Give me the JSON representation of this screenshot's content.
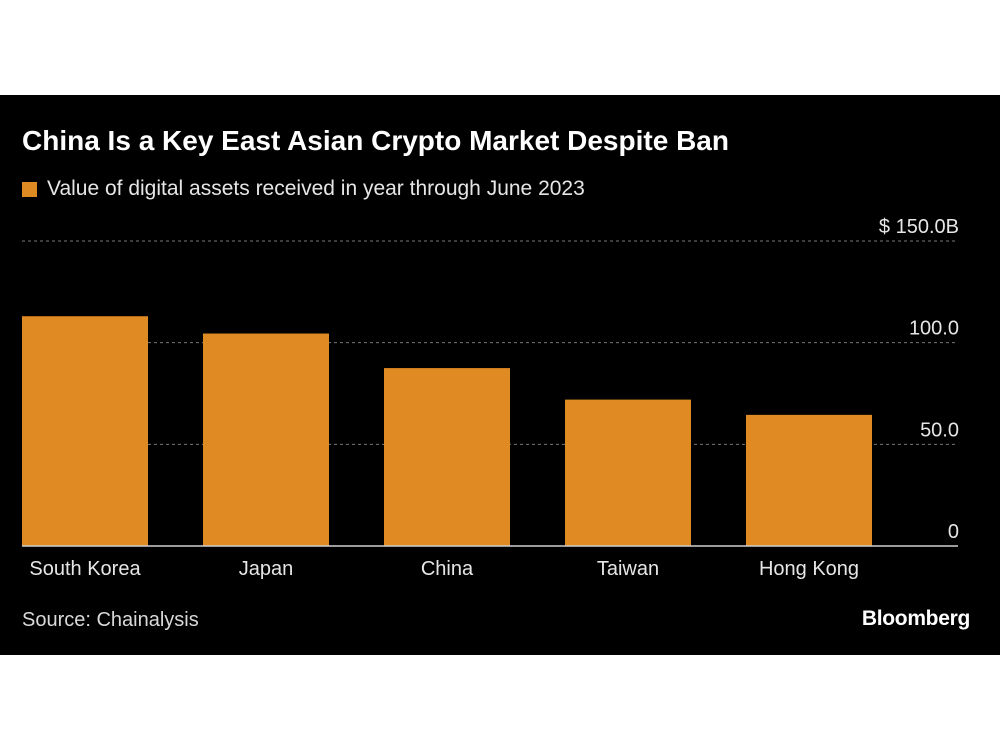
{
  "chart": {
    "title": "China Is a Key East Asian Crypto Market Despite Ban",
    "legend_label": "Value of digital assets received in year through June 2023",
    "source": "Source: Chainalysis",
    "brand": "Bloomberg",
    "colors": {
      "bar": "#e08a23",
      "background": "#000000",
      "text": "#e6e6e6",
      "grid": "#777777"
    }
  },
  "chart_data": {
    "type": "bar",
    "title": "China Is a Key East Asian Crypto Market Despite Ban",
    "categories": [
      "South Korea",
      "Japan",
      "China",
      "Taiwan",
      "Hong Kong"
    ],
    "series": [
      {
        "name": "Value of digital assets received in year through June 2023",
        "values": [
          113,
          104.5,
          87.5,
          72,
          64.5
        ]
      }
    ],
    "ylim": [
      0,
      150
    ],
    "yticks": [
      0,
      50,
      100,
      150
    ],
    "ytick_labels": [
      "0",
      "50.0",
      "100.0",
      "$ 150.0B"
    ],
    "grid": true,
    "legend_position": "top-left",
    "xlabel": "",
    "ylabel": ""
  }
}
